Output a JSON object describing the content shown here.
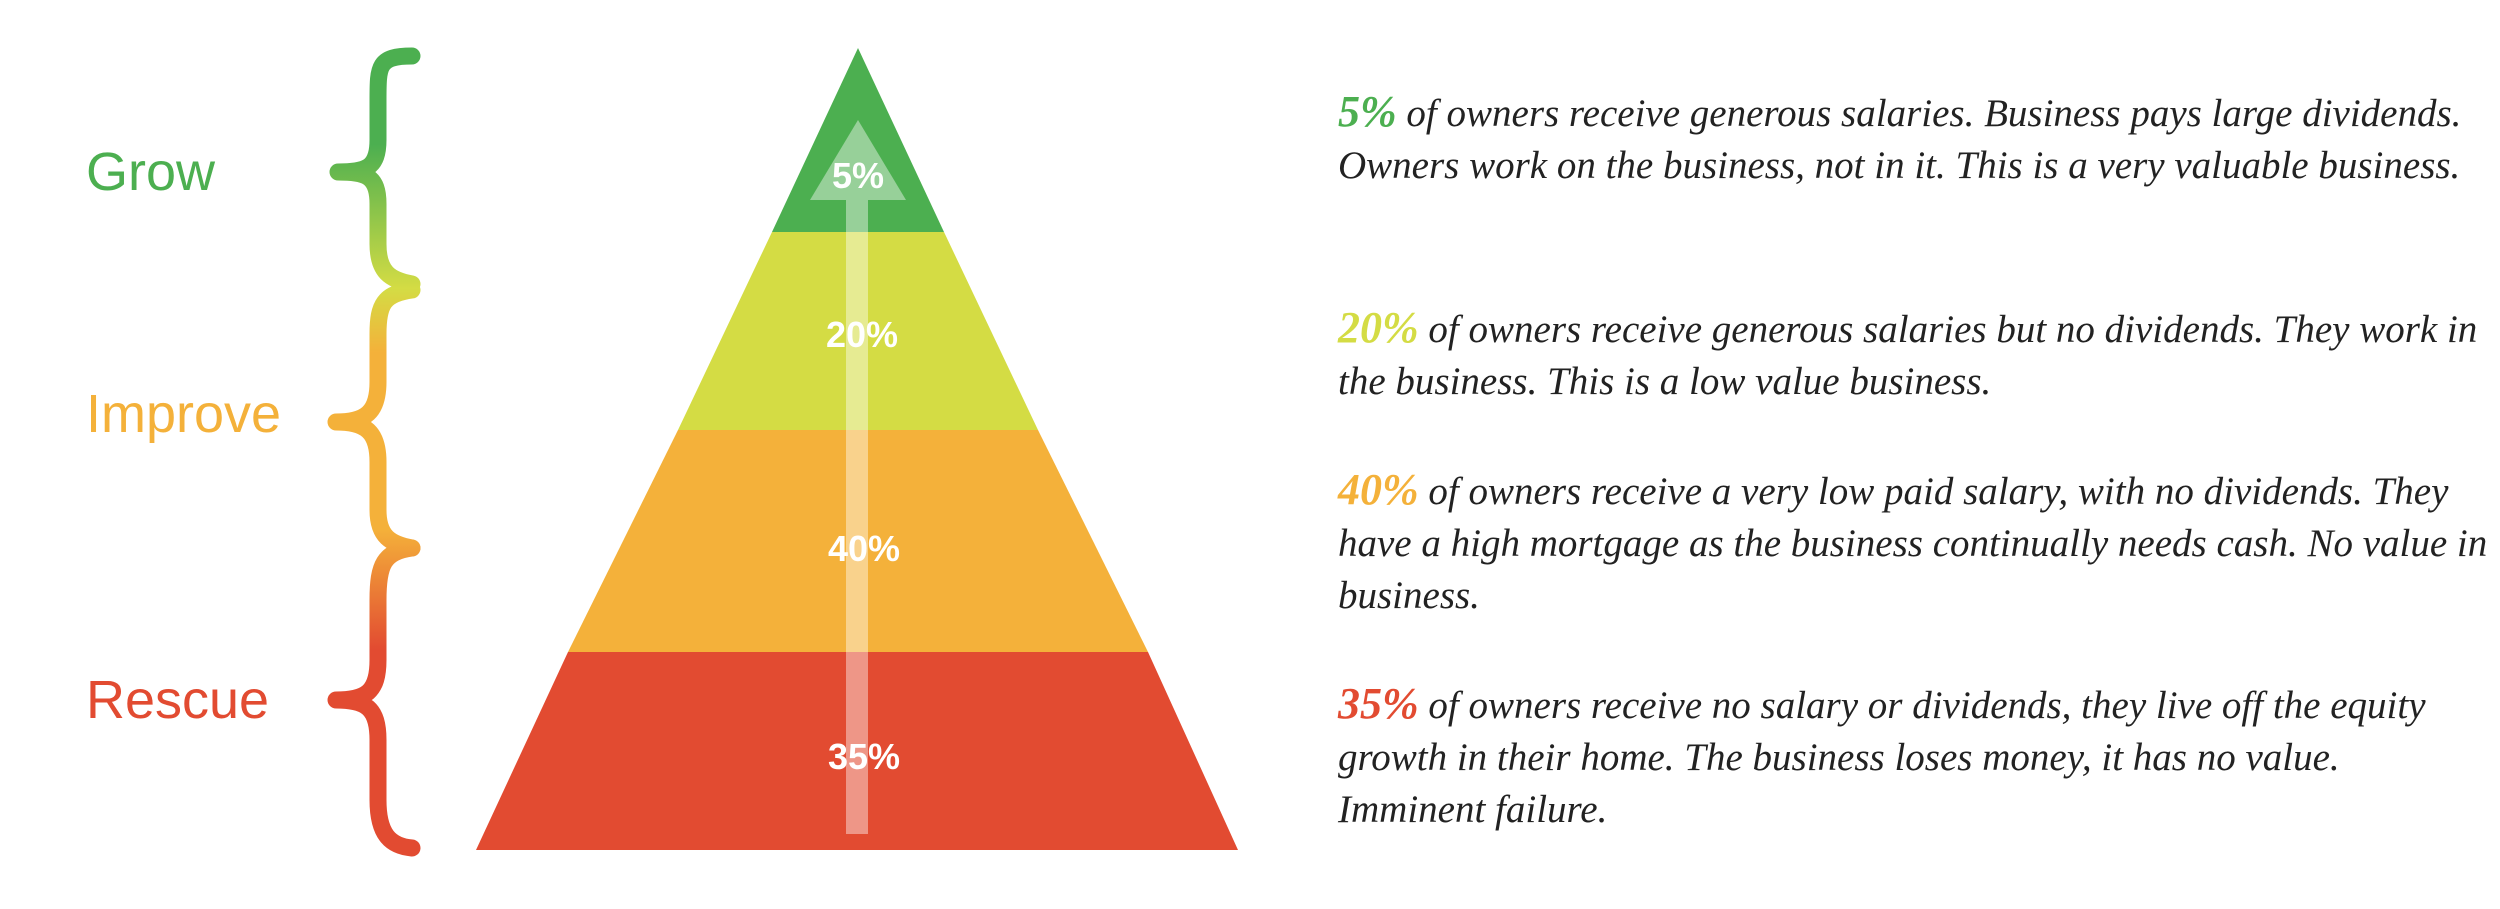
{
  "colors": {
    "grow": "#4caf50",
    "improve": "#f4b13a",
    "rescue": "#e24b31",
    "tier_20": "#d4dc44"
  },
  "stages": [
    {
      "id": "grow",
      "label": "Grow"
    },
    {
      "id": "improve",
      "label": "Improve"
    },
    {
      "id": "rescue",
      "label": "Rescue"
    }
  ],
  "pyramid": {
    "tiers": [
      {
        "label": "5%",
        "value": 5
      },
      {
        "label": "20%",
        "value": 20
      },
      {
        "label": "40%",
        "value": 40
      },
      {
        "label": "35%",
        "value": 35
      }
    ],
    "arrow": "up-arrow"
  },
  "descriptions": [
    {
      "pct": "5%",
      "text": " of owners receive generous salaries. Business pays large dividends. Owners work on the business, not in it. This is a very valuable business."
    },
    {
      "pct": "20%",
      "text": " of owners receive generous salaries but no dividends. They work in the business. This is a low value business."
    },
    {
      "pct": "40%",
      "text": " of owners receive a very low paid salary, with no dividends. They have a high mortgage as the business continually needs cash. No value in business."
    },
    {
      "pct": "35%",
      "text": " of owners receive no salary or dividends, they live off the equity growth in their home. The business loses money, it has no value. Imminent failure."
    }
  ]
}
